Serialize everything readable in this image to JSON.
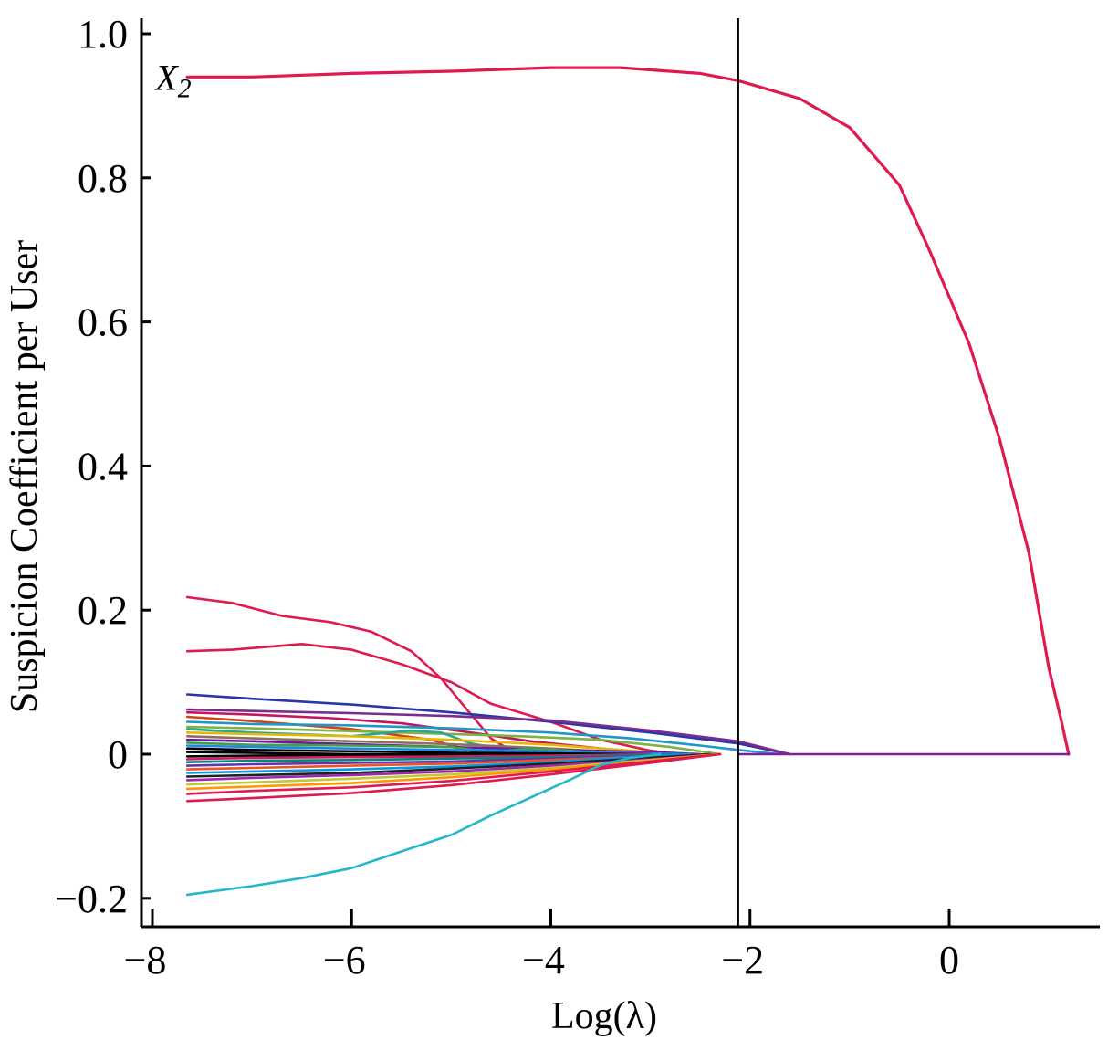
{
  "chart_data": {
    "type": "line",
    "title": "",
    "xlabel": "Log(λ)",
    "ylabel": "Suspicion Coefficient per User",
    "xlim": [
      -8.05,
      1.6
    ],
    "ylim": [
      -0.245,
      1.0
    ],
    "x_ticks": [
      -8,
      -6,
      -4,
      -2,
      0
    ],
    "x_tick_labels": [
      "−8",
      "−6",
      "−4",
      "−2",
      "0"
    ],
    "y_ticks": [
      -0.2,
      0,
      0.2,
      0.4,
      0.6,
      0.8,
      1.0
    ],
    "y_tick_labels": [
      "−0.2",
      "0",
      "0.2",
      "0.4",
      "0.6",
      "0.8",
      "1.0"
    ],
    "vline_x": -2.12,
    "grid": false,
    "annotations": [
      {
        "text": "X",
        "subscript": "2",
        "x": -7.65,
        "y": 0.94
      }
    ],
    "series": [
      {
        "color": "#e0194f",
        "points": [
          [
            -7.65,
            0.94
          ],
          [
            -7.0,
            0.94
          ],
          [
            -6.0,
            0.945
          ],
          [
            -5.0,
            0.948
          ],
          [
            -4.0,
            0.953
          ],
          [
            -3.3,
            0.953
          ],
          [
            -2.5,
            0.945
          ],
          [
            -2.12,
            0.935
          ],
          [
            -1.5,
            0.91
          ],
          [
            -1.0,
            0.87
          ],
          [
            -0.5,
            0.79
          ],
          [
            -0.2,
            0.7
          ],
          [
            0.2,
            0.57
          ],
          [
            0.5,
            0.44
          ],
          [
            0.8,
            0.28
          ],
          [
            1.0,
            0.12
          ],
          [
            1.12,
            0.05
          ],
          [
            1.2,
            0.0
          ]
        ]
      },
      {
        "color": "#e0194f",
        "points": [
          [
            -7.65,
            0.218
          ],
          [
            -7.2,
            0.21
          ],
          [
            -6.7,
            0.192
          ],
          [
            -6.2,
            0.183
          ],
          [
            -5.8,
            0.17
          ],
          [
            -5.4,
            0.143
          ],
          [
            -5.1,
            0.105
          ],
          [
            -4.8,
            0.055
          ],
          [
            -4.6,
            0.022
          ],
          [
            -4.4,
            0.005
          ],
          [
            -4.2,
            -0.008
          ],
          [
            -4.0,
            -0.006
          ],
          [
            -3.5,
            0.0
          ]
        ]
      },
      {
        "color": "#e0194f",
        "points": [
          [
            -7.65,
            0.143
          ],
          [
            -7.2,
            0.145
          ],
          [
            -6.5,
            0.153
          ],
          [
            -6.0,
            0.145
          ],
          [
            -5.5,
            0.125
          ],
          [
            -5.0,
            0.1
          ],
          [
            -4.6,
            0.07
          ],
          [
            -4.0,
            0.045
          ],
          [
            -3.5,
            0.02
          ],
          [
            -3.0,
            0.005
          ],
          [
            -2.7,
            0.0
          ]
        ]
      },
      {
        "color": "#2a35a8",
        "points": [
          [
            -7.65,
            0.083
          ],
          [
            -7.0,
            0.077
          ],
          [
            -6.0,
            0.069
          ],
          [
            -5.0,
            0.058
          ],
          [
            -4.0,
            0.045
          ],
          [
            -3.0,
            0.03
          ],
          [
            -2.12,
            0.015
          ],
          [
            -1.6,
            0.0
          ]
        ]
      },
      {
        "color": "#7b2d8e",
        "points": [
          [
            -7.65,
            0.062
          ],
          [
            -7.0,
            0.06
          ],
          [
            -6.0,
            0.057
          ],
          [
            -5.0,
            0.053
          ],
          [
            -4.0,
            0.047
          ],
          [
            -3.0,
            0.033
          ],
          [
            -2.12,
            0.018
          ],
          [
            -1.6,
            0.0
          ]
        ]
      },
      {
        "color": "#c2185b",
        "points": [
          [
            -7.65,
            0.058
          ],
          [
            -7.0,
            0.055
          ],
          [
            -6.2,
            0.05
          ],
          [
            -5.5,
            0.043
          ],
          [
            -4.8,
            0.03
          ],
          [
            -4.2,
            0.018
          ],
          [
            -3.5,
            0.008
          ],
          [
            -2.8,
            0.0
          ]
        ]
      },
      {
        "color": "#d84315",
        "points": [
          [
            -7.65,
            0.052
          ],
          [
            -7.0,
            0.046
          ],
          [
            -6.0,
            0.035
          ],
          [
            -5.2,
            0.02
          ],
          [
            -4.8,
            0.005
          ],
          [
            -4.5,
            -0.008
          ],
          [
            -4.2,
            -0.004
          ],
          [
            -3.6,
            0.0
          ]
        ]
      },
      {
        "color": "#2196c8",
        "points": [
          [
            -7.65,
            0.045
          ],
          [
            -7.0,
            0.042
          ],
          [
            -6.0,
            0.04
          ],
          [
            -5.0,
            0.036
          ],
          [
            -4.0,
            0.03
          ],
          [
            -3.2,
            0.022
          ],
          [
            -2.5,
            0.012
          ],
          [
            -2.12,
            0.006
          ],
          [
            -1.7,
            0.0
          ]
        ]
      },
      {
        "color": "#7cb342",
        "points": [
          [
            -7.65,
            0.038
          ],
          [
            -7.0,
            0.036
          ],
          [
            -6.0,
            0.032
          ],
          [
            -5.0,
            0.028
          ],
          [
            -4.3,
            0.025
          ],
          [
            -3.5,
            0.02
          ],
          [
            -2.8,
            0.01
          ],
          [
            -2.3,
            0.0
          ]
        ]
      },
      {
        "color": "#26a69a",
        "points": [
          [
            -7.65,
            0.035
          ],
          [
            -7.0,
            0.03
          ],
          [
            -6.0,
            0.025
          ],
          [
            -5.4,
            0.033
          ],
          [
            -5.1,
            0.03
          ],
          [
            -4.8,
            0.015
          ],
          [
            -4.4,
            0.005
          ],
          [
            -3.8,
            0.0
          ]
        ]
      },
      {
        "color": "#e6b800",
        "points": [
          [
            -7.65,
            0.03
          ],
          [
            -7.0,
            0.028
          ],
          [
            -6.0,
            0.025
          ],
          [
            -5.0,
            0.02
          ],
          [
            -4.0,
            0.013
          ],
          [
            -3.2,
            0.005
          ],
          [
            -2.6,
            0.0
          ]
        ]
      },
      {
        "color": "#8d6e63",
        "points": [
          [
            -7.65,
            0.025
          ],
          [
            -7.0,
            0.022
          ],
          [
            -6.0,
            0.018
          ],
          [
            -5.0,
            0.014
          ],
          [
            -4.0,
            0.008
          ],
          [
            -3.2,
            0.002
          ],
          [
            -2.7,
            0.0
          ]
        ]
      },
      {
        "color": "#6a1b9a",
        "points": [
          [
            -7.65,
            0.02
          ],
          [
            -7.0,
            0.018
          ],
          [
            -6.0,
            0.014
          ],
          [
            -5.0,
            0.01
          ],
          [
            -4.0,
            0.006
          ],
          [
            -3.0,
            0.003
          ],
          [
            -2.5,
            0.0
          ]
        ]
      },
      {
        "color": "#43a047",
        "points": [
          [
            -7.65,
            0.016
          ],
          [
            -7.0,
            0.013
          ],
          [
            -6.0,
            0.012
          ],
          [
            -5.0,
            0.01
          ],
          [
            -4.6,
            0.003
          ],
          [
            -4.2,
            0.008
          ],
          [
            -3.6,
            0.003
          ],
          [
            -3.0,
            0.0
          ]
        ]
      },
      {
        "color": "#1e88e5",
        "points": [
          [
            -7.65,
            0.012
          ],
          [
            -7.0,
            0.01
          ],
          [
            -6.0,
            0.008
          ],
          [
            -5.0,
            0.006
          ],
          [
            -4.0,
            0.004
          ],
          [
            -3.0,
            0.001
          ],
          [
            -2.6,
            0.0
          ]
        ]
      },
      {
        "color": "#000000",
        "points": [
          [
            -7.65,
            0.008
          ],
          [
            -7.0,
            0.006
          ],
          [
            -6.0,
            0.004
          ],
          [
            -5.0,
            0.002
          ],
          [
            -4.0,
            0.001
          ],
          [
            -3.0,
            0.0
          ]
        ]
      },
      {
        "color": "#000000",
        "points": [
          [
            -7.65,
            0.003
          ],
          [
            -7.0,
            0.002
          ],
          [
            -6.0,
            0.0
          ],
          [
            -5.0,
            -0.001
          ],
          [
            -4.0,
            0.0
          ]
        ]
      },
      {
        "color": "#000000",
        "points": [
          [
            -7.65,
            -0.003
          ],
          [
            -7.0,
            -0.002
          ],
          [
            -6.0,
            -0.001
          ],
          [
            -5.0,
            0.0
          ],
          [
            -4.0,
            0.0
          ]
        ]
      },
      {
        "color": "#d81b60",
        "points": [
          [
            -7.65,
            -0.007
          ],
          [
            -7.0,
            -0.005
          ],
          [
            -6.0,
            -0.004
          ],
          [
            -5.0,
            -0.003
          ],
          [
            -4.0,
            -0.002
          ],
          [
            -3.0,
            0.0
          ]
        ]
      },
      {
        "color": "#00897b",
        "points": [
          [
            -7.65,
            -0.011
          ],
          [
            -7.0,
            -0.009
          ],
          [
            -6.0,
            -0.008
          ],
          [
            -5.0,
            -0.006
          ],
          [
            -4.0,
            -0.004
          ],
          [
            -3.0,
            -0.001
          ],
          [
            -2.6,
            0.0
          ]
        ]
      },
      {
        "color": "#5e35b1",
        "points": [
          [
            -7.65,
            -0.016
          ],
          [
            -7.0,
            -0.014
          ],
          [
            -6.0,
            -0.012
          ],
          [
            -5.0,
            -0.01
          ],
          [
            -4.0,
            -0.006
          ],
          [
            -3.0,
            -0.002
          ],
          [
            -2.5,
            0.0
          ]
        ]
      },
      {
        "color": "#f4511e",
        "points": [
          [
            -7.65,
            -0.021
          ],
          [
            -7.0,
            -0.019
          ],
          [
            -6.0,
            -0.016
          ],
          [
            -5.0,
            -0.013
          ],
          [
            -4.0,
            -0.008
          ],
          [
            -3.0,
            -0.003
          ],
          [
            -2.4,
            0.0
          ]
        ]
      },
      {
        "color": "#039be5",
        "points": [
          [
            -7.65,
            -0.026
          ],
          [
            -7.0,
            -0.024
          ],
          [
            -6.0,
            -0.021
          ],
          [
            -5.0,
            -0.017
          ],
          [
            -4.0,
            -0.011
          ],
          [
            -3.2,
            -0.004
          ],
          [
            -2.6,
            0.0
          ]
        ]
      },
      {
        "color": "#212121",
        "points": [
          [
            -7.65,
            -0.031
          ],
          [
            -7.0,
            -0.029
          ],
          [
            -6.0,
            -0.026
          ],
          [
            -5.0,
            -0.02
          ],
          [
            -4.0,
            -0.013
          ],
          [
            -3.0,
            -0.005
          ],
          [
            -2.4,
            0.0
          ]
        ]
      },
      {
        "color": "#9c27b0",
        "points": [
          [
            -7.65,
            -0.036
          ],
          [
            -7.0,
            -0.033
          ],
          [
            -6.0,
            -0.029
          ],
          [
            -5.0,
            -0.024
          ],
          [
            -4.0,
            -0.016
          ],
          [
            -3.0,
            -0.007
          ],
          [
            -2.3,
            0.0
          ]
        ]
      },
      {
        "color": "#c0ca33",
        "points": [
          [
            -7.65,
            -0.042
          ],
          [
            -7.0,
            -0.039
          ],
          [
            -6.0,
            -0.034
          ],
          [
            -5.0,
            -0.028
          ],
          [
            -4.0,
            -0.019
          ],
          [
            -3.0,
            -0.008
          ],
          [
            -2.3,
            0.0
          ]
        ]
      },
      {
        "color": "#ff9800",
        "points": [
          [
            -7.65,
            -0.048
          ],
          [
            -7.0,
            -0.045
          ],
          [
            -6.0,
            -0.04
          ],
          [
            -5.0,
            -0.032
          ],
          [
            -4.0,
            -0.021
          ],
          [
            -3.0,
            -0.009
          ],
          [
            -2.3,
            0.0
          ]
        ]
      },
      {
        "color": "#e0194f",
        "points": [
          [
            -7.65,
            -0.055
          ],
          [
            -7.0,
            -0.051
          ],
          [
            -6.0,
            -0.046
          ],
          [
            -5.0,
            -0.037
          ],
          [
            -4.0,
            -0.024
          ],
          [
            -3.0,
            -0.01
          ],
          [
            -2.3,
            0.0
          ]
        ]
      },
      {
        "color": "#e0194f",
        "points": [
          [
            -7.65,
            -0.065
          ],
          [
            -7.0,
            -0.061
          ],
          [
            -6.0,
            -0.054
          ],
          [
            -5.0,
            -0.043
          ],
          [
            -4.0,
            -0.028
          ],
          [
            -3.0,
            -0.012
          ],
          [
            -2.3,
            0.0
          ]
        ]
      },
      {
        "color": "#26b6c9",
        "points": [
          [
            -7.65,
            -0.195
          ],
          [
            -7.0,
            -0.183
          ],
          [
            -6.5,
            -0.172
          ],
          [
            -6.0,
            -0.158
          ],
          [
            -5.5,
            -0.135
          ],
          [
            -5.0,
            -0.112
          ],
          [
            -4.6,
            -0.085
          ],
          [
            -4.2,
            -0.06
          ],
          [
            -3.8,
            -0.035
          ],
          [
            -3.5,
            -0.015
          ],
          [
            -3.2,
            -0.005
          ],
          [
            -2.9,
            0.0
          ]
        ]
      },
      {
        "color": "#7b1fa2",
        "points": [
          [
            -2.12,
            0.0
          ],
          [
            -1.6,
            0.0
          ],
          [
            0.0,
            0.0
          ],
          [
            1.2,
            0.0
          ]
        ]
      }
    ]
  }
}
